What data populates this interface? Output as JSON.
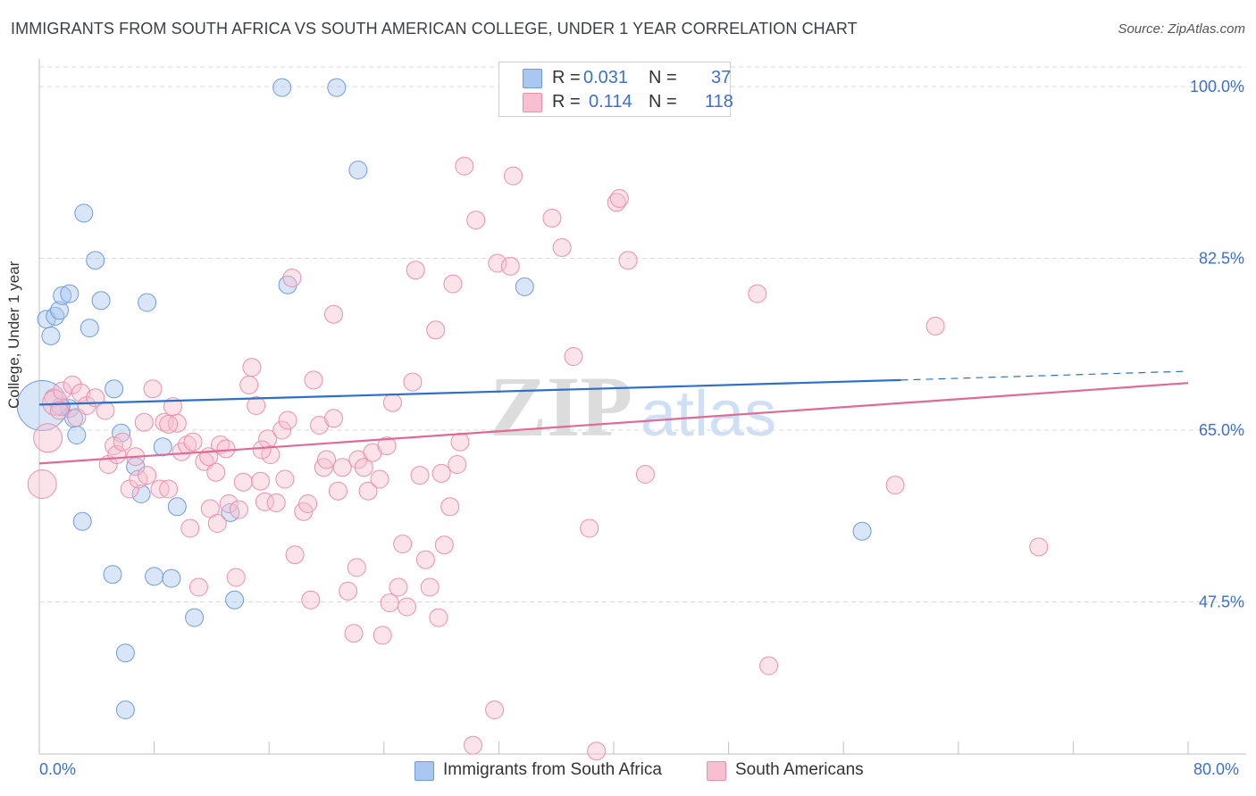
{
  "title": "IMMIGRANTS FROM SOUTH AFRICA VS SOUTH AMERICAN COLLEGE, UNDER 1 YEAR CORRELATION CHART",
  "source": "Source: ZipAtlas.com",
  "watermark": {
    "zip": "ZIP",
    "atlas": "atlas"
  },
  "legend_top": {
    "r_label": "R =",
    "n_label": "N =",
    "rows": [
      {
        "r": "0.031",
        "n": "37",
        "color": "#a9c7f0",
        "border": "#6f9bdc"
      },
      {
        "r": "0.114",
        "n": "118",
        "color": "#f7c0d1",
        "border": "#ea8fab"
      }
    ]
  },
  "legend_bottom": [
    {
      "label": "Immigrants from South Africa",
      "color": "#a9c7f0",
      "border": "#6f9bdc"
    },
    {
      "label": "South Americans",
      "color": "#f7c0d1",
      "border": "#ea8fab"
    }
  ],
  "colors": {
    "blue_line": "#2e6fca",
    "pink_line": "#e06a95",
    "tick_label": "#3c6fce",
    "grid": "#d9d9d9"
  },
  "chart_data": {
    "type": "scatter",
    "title": "IMMIGRANTS FROM SOUTH AFRICA VS SOUTH AMERICAN COLLEGE, UNDER 1 YEAR CORRELATION CHART",
    "xlabel": "",
    "ylabel": "College, Under 1 year",
    "xlim": [
      0,
      80
    ],
    "ylim": [
      32,
      102
    ],
    "x_tick_labels": [
      {
        "value": 0,
        "label": "0.0%"
      },
      {
        "value": 80,
        "label": "80.0%"
      }
    ],
    "y_tick_labels": [
      {
        "value": 47.5,
        "label": "47.5%"
      },
      {
        "value": 65.0,
        "label": "65.0%"
      },
      {
        "value": 82.5,
        "label": "82.5%"
      },
      {
        "value": 100.0,
        "label": "100.0%"
      }
    ],
    "series": [
      {
        "name": "Immigrants from South Africa",
        "r": 0.031,
        "n": 37,
        "trend": {
          "x0": 0,
          "y0": 67.6,
          "x1": 60,
          "y1": 70.1,
          "dash_to_x": 80,
          "dash_to_y": 71.0
        },
        "points": [
          [
            0.2,
            67.5,
            28
          ],
          [
            0.5,
            76.3,
            10
          ],
          [
            0.8,
            74.6,
            10
          ],
          [
            1.1,
            76.6,
            10
          ],
          [
            1.4,
            77.2,
            10
          ],
          [
            1.6,
            78.7,
            10
          ],
          [
            2.1,
            78.9,
            10
          ],
          [
            2.1,
            67.2,
            10
          ],
          [
            2.4,
            66.2,
            10
          ],
          [
            2.6,
            64.5,
            10
          ],
          [
            1.5,
            67.4,
            10
          ],
          [
            3.1,
            87.1,
            10
          ],
          [
            3.5,
            75.4,
            10
          ],
          [
            3.9,
            82.3,
            10
          ],
          [
            4.3,
            78.2,
            10
          ],
          [
            3.0,
            55.7,
            10
          ],
          [
            5.2,
            69.2,
            10
          ],
          [
            5.1,
            50.3,
            10
          ],
          [
            6.7,
            61.3,
            10
          ],
          [
            7.1,
            58.5,
            10
          ],
          [
            7.5,
            78.0,
            10
          ],
          [
            8.6,
            63.3,
            10
          ],
          [
            9.6,
            57.2,
            10
          ],
          [
            8.0,
            50.1,
            10
          ],
          [
            9.2,
            49.9,
            10
          ],
          [
            6.0,
            42.3,
            10
          ],
          [
            6.0,
            36.5,
            10
          ],
          [
            10.8,
            45.9,
            10
          ],
          [
            13.3,
            56.6,
            10
          ],
          [
            13.6,
            47.7,
            10
          ],
          [
            16.9,
            99.9,
            10
          ],
          [
            20.7,
            99.9,
            10
          ],
          [
            22.2,
            91.5,
            10
          ],
          [
            17.3,
            79.8,
            10
          ],
          [
            33.8,
            79.6,
            10
          ],
          [
            57.3,
            54.7,
            10
          ],
          [
            5.7,
            64.7,
            10
          ]
        ]
      },
      {
        "name": "South Americans",
        "r": 0.114,
        "n": 118,
        "trend": {
          "x0": 0,
          "y0": 61.6,
          "x1": 80,
          "y1": 69.8
        },
        "points": [
          [
            0.2,
            59.5,
            16
          ],
          [
            0.6,
            64.2,
            16
          ],
          [
            1.0,
            68.3,
            10
          ],
          [
            1.1,
            67.8,
            14
          ],
          [
            1.4,
            67.0,
            10
          ],
          [
            1.6,
            69.0,
            10
          ],
          [
            2.3,
            69.6,
            10
          ],
          [
            2.6,
            66.3,
            10
          ],
          [
            2.9,
            68.8,
            10
          ],
          [
            3.3,
            67.5,
            10
          ],
          [
            3.9,
            68.3,
            10
          ],
          [
            4.6,
            67.0,
            10
          ],
          [
            4.8,
            61.5,
            10
          ],
          [
            5.2,
            63.4,
            10
          ],
          [
            5.4,
            62.5,
            10
          ],
          [
            5.8,
            63.8,
            10
          ],
          [
            6.3,
            59.0,
            10
          ],
          [
            6.7,
            62.3,
            10
          ],
          [
            6.9,
            60.0,
            10
          ],
          [
            7.3,
            65.8,
            10
          ],
          [
            7.5,
            60.4,
            10
          ],
          [
            7.9,
            69.2,
            10
          ],
          [
            8.4,
            59.0,
            10
          ],
          [
            8.7,
            65.8,
            10
          ],
          [
            9.0,
            59.0,
            10
          ],
          [
            9.3,
            67.4,
            10
          ],
          [
            9.6,
            65.7,
            10
          ],
          [
            9.9,
            62.8,
            10
          ],
          [
            10.3,
            63.5,
            10
          ],
          [
            10.7,
            63.8,
            10
          ],
          [
            10.5,
            55.0,
            10
          ],
          [
            11.1,
            49.0,
            10
          ],
          [
            11.5,
            61.8,
            10
          ],
          [
            11.9,
            57.0,
            10
          ],
          [
            12.3,
            60.7,
            10
          ],
          [
            12.4,
            55.5,
            10
          ],
          [
            12.6,
            63.5,
            10
          ],
          [
            13.2,
            57.5,
            10
          ],
          [
            13.7,
            50.0,
            10
          ],
          [
            13.9,
            56.9,
            10
          ],
          [
            14.2,
            59.7,
            10
          ],
          [
            14.6,
            69.6,
            10
          ],
          [
            14.8,
            71.4,
            10
          ],
          [
            15.1,
            67.5,
            10
          ],
          [
            15.4,
            59.8,
            10
          ],
          [
            15.7,
            57.7,
            10
          ],
          [
            15.9,
            64.1,
            10
          ],
          [
            16.1,
            62.5,
            10
          ],
          [
            16.5,
            57.6,
            10
          ],
          [
            16.9,
            65.0,
            10
          ],
          [
            17.1,
            60.0,
            10
          ],
          [
            17.3,
            66.0,
            10
          ],
          [
            17.6,
            80.5,
            10
          ],
          [
            17.8,
            52.3,
            10
          ],
          [
            18.4,
            56.7,
            10
          ],
          [
            18.7,
            57.5,
            10
          ],
          [
            18.9,
            47.7,
            10
          ],
          [
            19.1,
            70.1,
            10
          ],
          [
            19.5,
            65.5,
            10
          ],
          [
            19.8,
            61.2,
            10
          ],
          [
            20.0,
            62.0,
            10
          ],
          [
            20.5,
            76.8,
            10
          ],
          [
            20.8,
            58.8,
            10
          ],
          [
            21.1,
            61.2,
            10
          ],
          [
            21.5,
            48.6,
            10
          ],
          [
            21.9,
            44.3,
            10
          ],
          [
            22.1,
            51.0,
            10
          ],
          [
            22.2,
            62.0,
            10
          ],
          [
            22.6,
            61.2,
            10
          ],
          [
            22.9,
            58.8,
            10
          ],
          [
            23.2,
            62.7,
            10
          ],
          [
            23.7,
            60.0,
            10
          ],
          [
            23.9,
            44.1,
            10
          ],
          [
            24.2,
            63.4,
            10
          ],
          [
            24.4,
            47.4,
            10
          ],
          [
            24.6,
            67.8,
            10
          ],
          [
            25.0,
            49.0,
            10
          ],
          [
            25.3,
            53.4,
            10
          ],
          [
            25.6,
            47.0,
            10
          ],
          [
            26.0,
            69.9,
            10
          ],
          [
            26.2,
            81.3,
            10
          ],
          [
            26.5,
            60.4,
            10
          ],
          [
            26.9,
            51.8,
            10
          ],
          [
            27.2,
            49.0,
            10
          ],
          [
            27.6,
            75.2,
            10
          ],
          [
            27.8,
            45.9,
            10
          ],
          [
            28.2,
            53.3,
            10
          ],
          [
            28.6,
            57.2,
            10
          ],
          [
            28.8,
            79.9,
            10
          ],
          [
            29.1,
            61.5,
            10
          ],
          [
            29.3,
            63.8,
            10
          ],
          [
            29.6,
            91.9,
            10
          ],
          [
            30.2,
            32.9,
            10
          ],
          [
            30.4,
            86.4,
            10
          ],
          [
            31.7,
            36.5,
            10
          ],
          [
            31.9,
            82.0,
            10
          ],
          [
            32.8,
            81.7,
            10
          ],
          [
            33.0,
            90.9,
            10
          ],
          [
            35.7,
            86.6,
            10
          ],
          [
            36.4,
            83.6,
            10
          ],
          [
            37.2,
            72.5,
            10
          ],
          [
            38.3,
            55.0,
            10
          ],
          [
            38.8,
            32.3,
            10
          ],
          [
            40.2,
            88.2,
            10
          ],
          [
            40.4,
            88.6,
            10
          ],
          [
            41.0,
            82.3,
            10
          ],
          [
            42.2,
            60.5,
            10
          ],
          [
            50.0,
            78.9,
            10
          ],
          [
            50.8,
            41.0,
            10
          ],
          [
            59.6,
            59.4,
            10
          ],
          [
            62.4,
            75.6,
            10
          ],
          [
            69.6,
            53.1,
            10
          ],
          [
            9.0,
            65.6,
            10
          ],
          [
            13.0,
            63.1,
            10
          ],
          [
            15.5,
            63.0,
            10
          ],
          [
            11.8,
            62.3,
            10
          ],
          [
            20.5,
            66.2,
            10
          ],
          [
            28.0,
            60.6,
            10
          ]
        ]
      }
    ]
  }
}
